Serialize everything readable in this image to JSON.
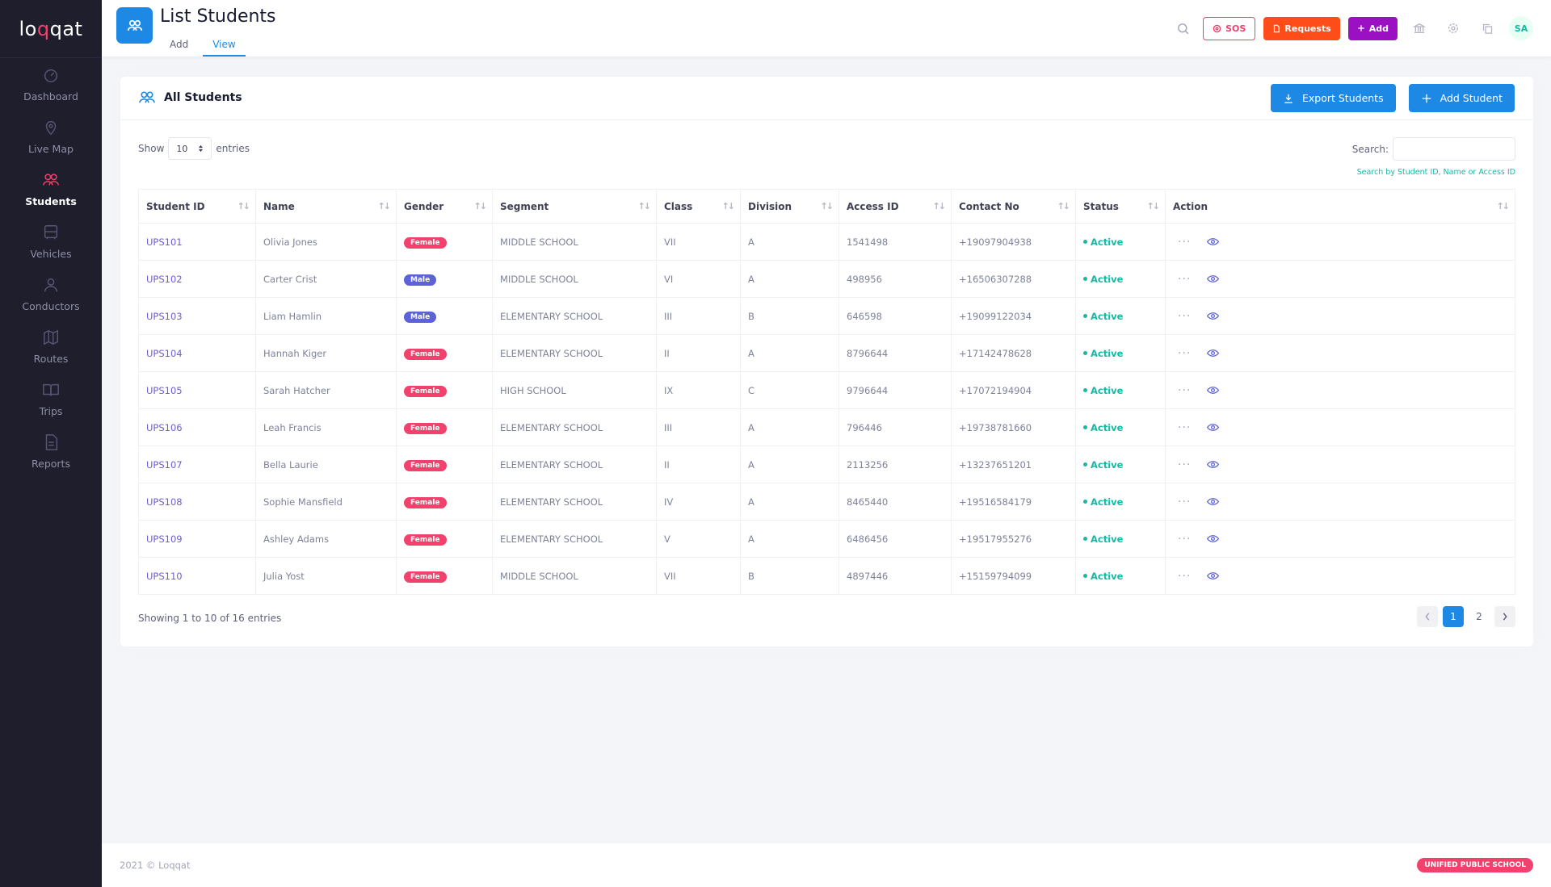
{
  "brand": {
    "logo_text_a": "lo",
    "logo_text_q": "q",
    "logo_text_b": "qat"
  },
  "sidebar": {
    "items": [
      {
        "label": "Dashboard",
        "icon": "gauge-icon"
      },
      {
        "label": "Live Map",
        "icon": "map-pin-icon"
      },
      {
        "label": "Students",
        "icon": "users-icon"
      },
      {
        "label": "Vehicles",
        "icon": "bus-icon"
      },
      {
        "label": "Conductors",
        "icon": "user-icon"
      },
      {
        "label": "Routes",
        "icon": "map-icon"
      },
      {
        "label": "Trips",
        "icon": "book-open-icon"
      },
      {
        "label": "Reports",
        "icon": "file-text-icon"
      }
    ],
    "active": "Students"
  },
  "header": {
    "title": "List Students",
    "tabs": [
      {
        "label": "Add"
      },
      {
        "label": "View"
      }
    ],
    "active_tab": "View",
    "sos_label": "SOS",
    "requests_label": "Requests",
    "add_label": "Add",
    "avatar_initials": "SA"
  },
  "card": {
    "title": "All Students",
    "export_label": "Export Students",
    "add_student_label": "Add Student",
    "show_label": "Show",
    "entries_label": "entries",
    "entries_value": "10",
    "search_label": "Search:",
    "search_hint": "Search by Student ID, Name or Access ID"
  },
  "table": {
    "columns": [
      "Student ID",
      "Name",
      "Gender",
      "Segment",
      "Class",
      "Division",
      "Access ID",
      "Contact No",
      "Status",
      "Action"
    ],
    "rows": [
      {
        "id": "UPS101",
        "name": "Olivia Jones",
        "gender": "Female",
        "segment": "MIDDLE SCHOOL",
        "class": "VII",
        "division": "A",
        "access": "1541498",
        "contact": "+19097904938",
        "status": "Active"
      },
      {
        "id": "UPS102",
        "name": "Carter Crist",
        "gender": "Male",
        "segment": "MIDDLE SCHOOL",
        "class": "VI",
        "division": "A",
        "access": "498956",
        "contact": "+16506307288",
        "status": "Active"
      },
      {
        "id": "UPS103",
        "name": "Liam Hamlin",
        "gender": "Male",
        "segment": "ELEMENTARY SCHOOL",
        "class": "III",
        "division": "B",
        "access": "646598",
        "contact": "+19099122034",
        "status": "Active"
      },
      {
        "id": "UPS104",
        "name": "Hannah Kiger",
        "gender": "Female",
        "segment": "ELEMENTARY SCHOOL",
        "class": "II",
        "division": "A",
        "access": "8796644",
        "contact": "+17142478628",
        "status": "Active"
      },
      {
        "id": "UPS105",
        "name": "Sarah Hatcher",
        "gender": "Female",
        "segment": "HIGH SCHOOL",
        "class": "IX",
        "division": "C",
        "access": "9796644",
        "contact": "+17072194904",
        "status": "Active"
      },
      {
        "id": "UPS106",
        "name": "Leah Francis",
        "gender": "Female",
        "segment": "ELEMENTARY SCHOOL",
        "class": "III",
        "division": "A",
        "access": "796446",
        "contact": "+19738781660",
        "status": "Active"
      },
      {
        "id": "UPS107",
        "name": "Bella Laurie",
        "gender": "Female",
        "segment": "ELEMENTARY SCHOOL",
        "class": "II",
        "division": "A",
        "access": "2113256",
        "contact": "+13237651201",
        "status": "Active"
      },
      {
        "id": "UPS108",
        "name": "Sophie Mansfield",
        "gender": "Female",
        "segment": "ELEMENTARY SCHOOL",
        "class": "IV",
        "division": "A",
        "access": "8465440",
        "contact": "+19516584179",
        "status": "Active"
      },
      {
        "id": "UPS109",
        "name": "Ashley Adams",
        "gender": "Female",
        "segment": "ELEMENTARY SCHOOL",
        "class": "V",
        "division": "A",
        "access": "6486456",
        "contact": "+19517955276",
        "status": "Active"
      },
      {
        "id": "UPS110",
        "name": "Julia Yost",
        "gender": "Female",
        "segment": "MIDDLE SCHOOL",
        "class": "VII",
        "division": "B",
        "access": "4897446",
        "contact": "+15159794099",
        "status": "Active"
      }
    ]
  },
  "pagination": {
    "info": "Showing 1 to 10 of 16 entries",
    "pages": [
      "1",
      "2"
    ],
    "current": "1"
  },
  "footer": {
    "copyright": "2021 © Loqqat",
    "school": "UNIFIED PUBLIC SCHOOL"
  },
  "colors": {
    "accent": "#1e88e5",
    "brand": "#f1416c",
    "sidebar_bg": "#1e1e2d",
    "active_status": "#17b8a6",
    "requests": "#ff4d1a",
    "add": "#9c10c4"
  }
}
